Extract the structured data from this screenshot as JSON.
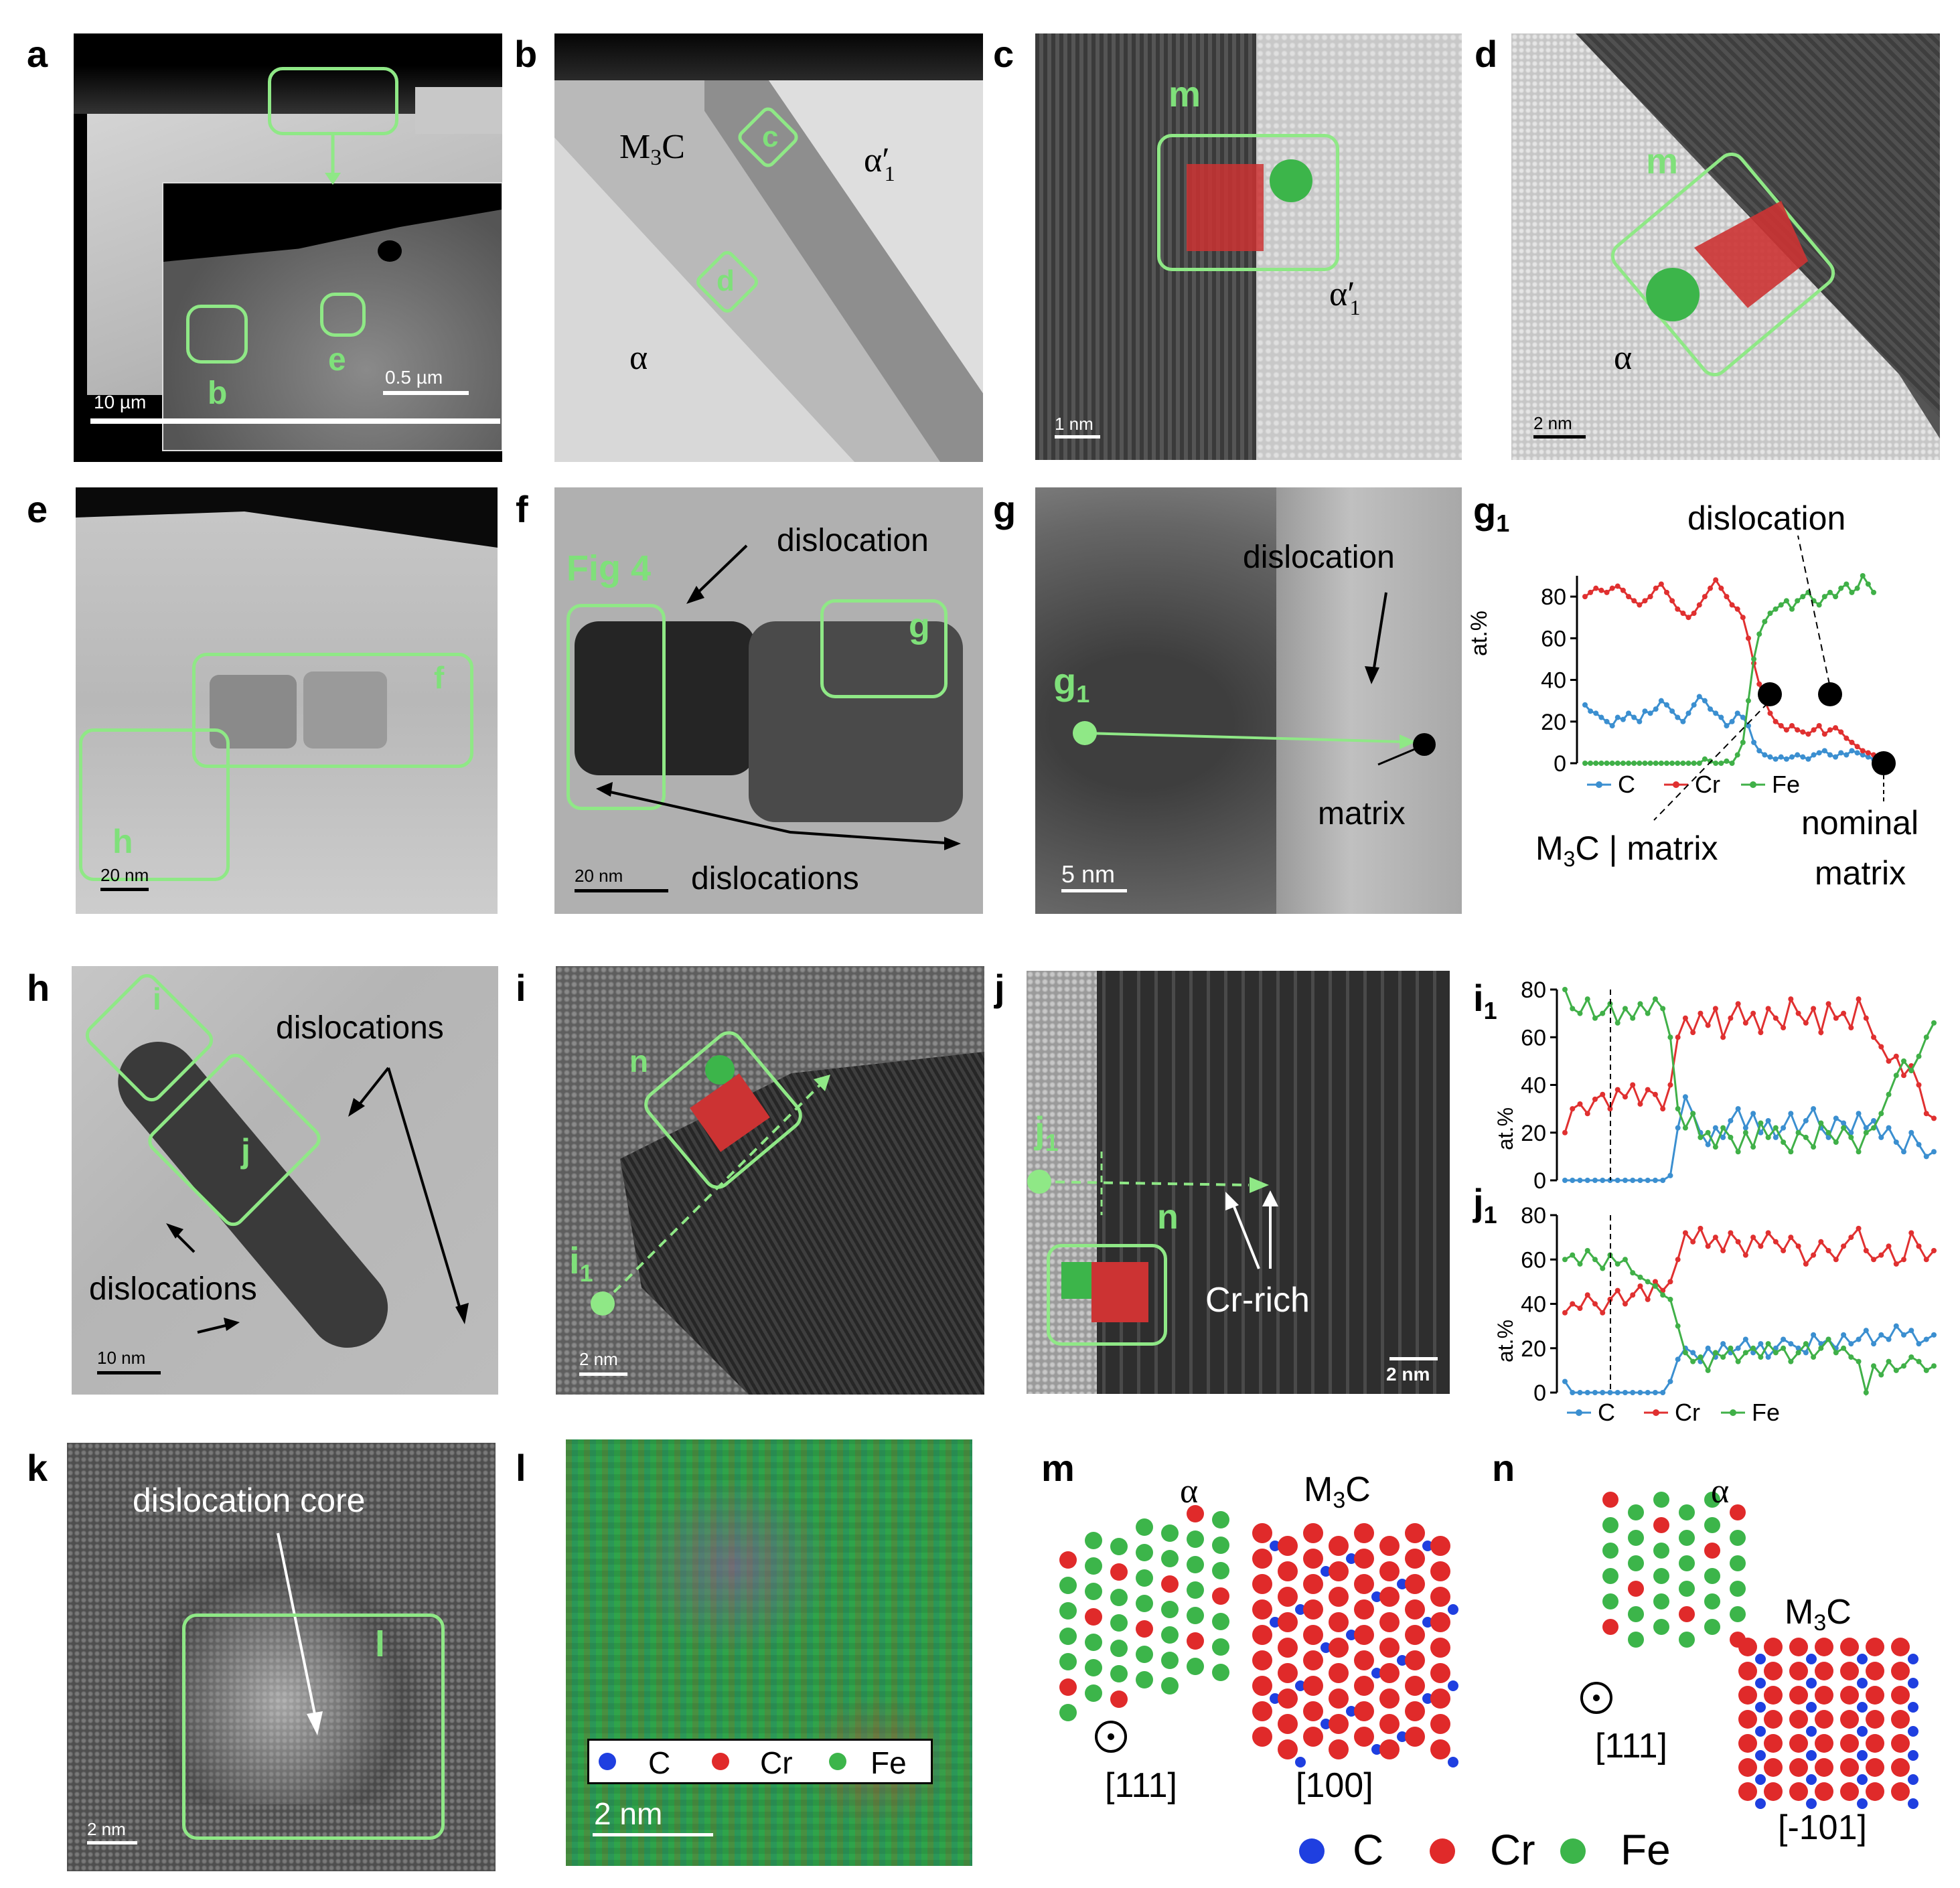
{
  "panels": {
    "a": {
      "letter": "a",
      "scale_outer": "10 µm",
      "scale_inset": "0.5 µm",
      "box_b": "b",
      "box_e": "e"
    },
    "b": {
      "letter": "b",
      "m3c": "M",
      "m3c_sub": "3",
      "m3c_c": "C",
      "alpha": "α",
      "alpha1": "α",
      "alpha1_sub": "1",
      "prime": "′",
      "box_c": "c",
      "box_d": "d"
    },
    "c": {
      "letter": "c",
      "box_m": "m",
      "alpha1": "α",
      "alpha1_sub": "1",
      "prime": "′",
      "scale": "1 nm"
    },
    "d": {
      "letter": "d",
      "box_m": "m",
      "alpha": "α",
      "scale": "2 nm"
    },
    "e": {
      "letter": "e",
      "box_f": "f",
      "box_h": "h",
      "scale": "20 nm"
    },
    "f": {
      "letter": "f",
      "fig4": "Fig 4",
      "box_g": "g",
      "dislocation": "dislocation",
      "dislocations": "dislocations",
      "scale": "20 nm"
    },
    "g": {
      "letter": "g",
      "g1": "g",
      "g1_sub": "1",
      "dislocation": "dislocation",
      "matrix": "matrix",
      "scale": "5 nm"
    },
    "g1": {
      "letter": "g",
      "letter_sub": "1",
      "dislocation": "dislocation",
      "ylabel": "at.%",
      "m3c_matrix": "M",
      "m3c_sub": "3",
      "m3c_rest": "C | matrix",
      "nominal": "nominal",
      "matrix": "matrix"
    },
    "h": {
      "letter": "h",
      "box_i": "i",
      "box_j": "j",
      "dislocations_top": "dislocations",
      "dislocations_bottom": "dislocations",
      "scale": "10 nm"
    },
    "i": {
      "letter": "i",
      "box_n": "n",
      "i1": "i",
      "i1_sub": "1",
      "scale": "2 nm"
    },
    "j": {
      "letter": "j",
      "j1": "j",
      "j1_sub": "1",
      "box_n": "n",
      "cr_rich": "Cr-rich",
      "scale": "2 nm"
    },
    "i1": {
      "letter": "i",
      "letter_sub": "1",
      "ylabel": "at.%"
    },
    "j1": {
      "letter": "j",
      "letter_sub": "1",
      "ylabel": "at.%"
    },
    "k": {
      "letter": "k",
      "core": "dislocation core",
      "box_l": "l",
      "scale": "2 nm"
    },
    "l": {
      "letter": "l",
      "scale": "2 nm",
      "legend": [
        "C",
        "Cr",
        "Fe"
      ]
    },
    "m": {
      "letter": "m",
      "alpha": "α",
      "m3c": "M",
      "m3c_sub": "3",
      "m3c_c": "C",
      "zone_alpha": "[111]",
      "zone_m3c": "[100]"
    },
    "n": {
      "letter": "n",
      "alpha": "α",
      "m3c": "M",
      "m3c_sub": "3",
      "m3c_c": "C",
      "zone_alpha": "[111]",
      "zone_m3c": "[-101]"
    },
    "legend_bottom": [
      "C",
      "Cr",
      "Fe"
    ]
  },
  "colors": {
    "C": "#1f3fe0",
    "Cr": "#e02a2a",
    "Fe": "#3cb54a",
    "box": "#8fe886",
    "C_line": "#3b8fd0",
    "Cr_line": "#e03030",
    "Fe_line": "#40b048"
  },
  "chart_data": [
    {
      "type": "line",
      "panel": "g1",
      "ylabel": "at.%",
      "ylim": [
        0,
        90
      ],
      "yticks": [
        0,
        20,
        40,
        60,
        80
      ],
      "legend": [
        "C",
        "Cr",
        "Fe"
      ],
      "legend_position": "bottom",
      "series": [
        {
          "name": "C",
          "values": [
            28,
            25,
            24,
            22,
            20,
            18,
            22,
            21,
            24,
            22,
            20,
            25,
            24,
            26,
            30,
            28,
            25,
            22,
            20,
            24,
            28,
            32,
            30,
            26,
            24,
            22,
            18,
            20,
            24,
            22,
            18,
            10,
            6,
            4,
            3,
            2,
            3,
            2,
            3,
            4,
            3,
            2,
            4,
            5,
            6,
            4,
            3,
            5,
            4,
            6,
            5,
            4,
            3,
            2
          ]
        },
        {
          "name": "Cr",
          "values": [
            80,
            82,
            84,
            83,
            82,
            84,
            85,
            83,
            80,
            78,
            76,
            78,
            80,
            84,
            86,
            82,
            78,
            74,
            72,
            70,
            72,
            76,
            80,
            84,
            88,
            84,
            80,
            76,
            74,
            70,
            60,
            48,
            38,
            30,
            24,
            20,
            18,
            16,
            18,
            16,
            15,
            14,
            16,
            18,
            14,
            16,
            17,
            15,
            12,
            10,
            8,
            6,
            5,
            4
          ]
        },
        {
          "name": "Fe",
          "values": [
            0,
            0,
            0,
            0,
            0,
            0,
            0,
            0,
            0,
            0,
            0,
            0,
            0,
            0,
            0,
            0,
            0,
            0,
            0,
            0,
            0,
            0,
            2,
            1,
            0,
            0,
            1,
            0,
            4,
            10,
            30,
            50,
            62,
            68,
            72,
            74,
            76,
            78,
            74,
            78,
            80,
            82,
            78,
            76,
            80,
            82,
            80,
            84,
            86,
            82,
            84,
            90,
            86,
            82
          ]
        }
      ]
    },
    {
      "type": "line",
      "panel": "i1",
      "ylabel": "at.%",
      "ylim": [
        0,
        80
      ],
      "yticks": [
        0,
        20,
        40,
        60,
        80
      ],
      "series": [
        {
          "name": "C",
          "values": [
            0,
            0,
            0,
            0,
            0,
            0,
            0,
            0,
            0,
            0,
            0,
            0,
            0,
            0,
            2,
            22,
            35,
            28,
            20,
            15,
            22,
            18,
            25,
            30,
            22,
            28,
            20,
            25,
            18,
            22,
            28,
            20,
            25,
            30,
            22,
            18,
            26,
            24,
            20,
            28,
            22,
            25,
            18,
            22,
            16,
            12,
            20,
            15,
            10,
            12
          ]
        },
        {
          "name": "Cr",
          "values": [
            20,
            30,
            32,
            28,
            34,
            36,
            30,
            38,
            35,
            40,
            32,
            38,
            36,
            30,
            40,
            60,
            68,
            62,
            70,
            65,
            72,
            60,
            68,
            74,
            66,
            70,
            62,
            72,
            68,
            64,
            76,
            70,
            66,
            72,
            62,
            74,
            68,
            70,
            64,
            76,
            68,
            60,
            56,
            50,
            52,
            44,
            48,
            40,
            28,
            26
          ]
        },
        {
          "name": "Fe",
          "values": [
            80,
            72,
            70,
            76,
            68,
            70,
            74,
            66,
            72,
            68,
            74,
            70,
            76,
            72,
            60,
            30,
            22,
            28,
            18,
            20,
            14,
            22,
            18,
            12,
            20,
            14,
            24,
            18,
            22,
            16,
            12,
            20,
            18,
            14,
            24,
            20,
            16,
            22,
            18,
            12,
            20,
            22,
            28,
            36,
            44,
            50,
            46,
            52,
            60,
            66
          ]
        }
      ]
    },
    {
      "type": "line",
      "panel": "j1",
      "ylabel": "at.%",
      "ylim": [
        0,
        80
      ],
      "yticks": [
        0,
        20,
        40,
        60,
        80
      ],
      "legend": [
        "C",
        "Cr",
        "Fe"
      ],
      "legend_position": "bottom",
      "series": [
        {
          "name": "C",
          "values": [
            5,
            0,
            0,
            0,
            0,
            0,
            0,
            0,
            0,
            0,
            0,
            0,
            0,
            0,
            5,
            15,
            20,
            18,
            14,
            20,
            16,
            22,
            18,
            20,
            24,
            18,
            22,
            16,
            20,
            24,
            22,
            20,
            18,
            26,
            22,
            24,
            20,
            26,
            22,
            24,
            28,
            22,
            26,
            24,
            30,
            26,
            28,
            22,
            24,
            26
          ]
        },
        {
          "name": "Cr",
          "values": [
            36,
            40,
            38,
            44,
            40,
            36,
            42,
            46,
            40,
            44,
            48,
            42,
            50,
            46,
            50,
            60,
            72,
            68,
            74,
            66,
            70,
            64,
            72,
            68,
            62,
            70,
            66,
            72,
            68,
            64,
            70,
            66,
            58,
            62,
            68,
            64,
            60,
            66,
            70,
            74,
            64,
            60,
            62,
            66,
            58,
            60,
            72,
            66,
            60,
            64
          ]
        },
        {
          "name": "Fe",
          "values": [
            60,
            62,
            58,
            64,
            60,
            56,
            62,
            58,
            60,
            54,
            52,
            50,
            48,
            44,
            42,
            30,
            18,
            14,
            16,
            10,
            18,
            16,
            20,
            14,
            18,
            20,
            16,
            22,
            18,
            20,
            14,
            18,
            22,
            16,
            20,
            24,
            18,
            20,
            16,
            14,
            0,
            12,
            8,
            14,
            10,
            12,
            16,
            14,
            10,
            12
          ]
        }
      ]
    }
  ]
}
